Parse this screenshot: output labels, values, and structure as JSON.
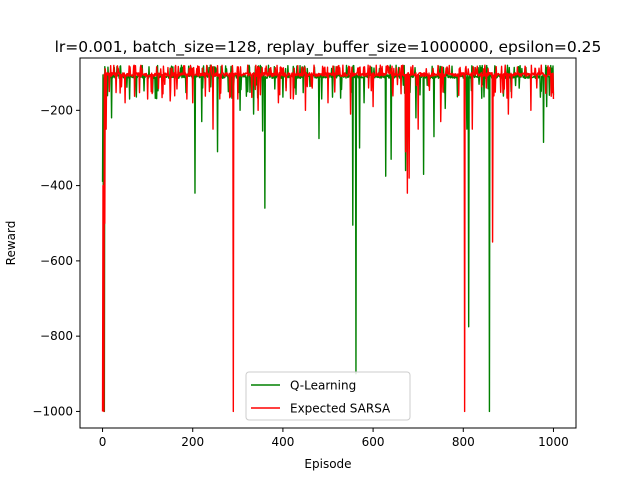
{
  "chart_data": {
    "type": "line",
    "title": "lr=0.001, batch_size=128, replay_buffer_size=1000000, epsilon=0.25",
    "xlabel": "Episode",
    "ylabel": "Reward",
    "xlim": [
      -50,
      1050
    ],
    "ylim": [
      -1044,
      -61
    ],
    "xticks": [
      0,
      200,
      400,
      600,
      800,
      1000
    ],
    "yticks": [
      -200,
      -400,
      -600,
      -800,
      -1000
    ],
    "xtick_labels": [
      "0",
      "200",
      "400",
      "600",
      "800",
      "1000"
    ],
    "ytick_labels": [
      "−200",
      "−400",
      "−600",
      "−800",
      "−1000"
    ],
    "grid": false,
    "legend": "lower center",
    "series": [
      {
        "name": "Q-Learning",
        "color": "#008000",
        "baseline": [
          -105,
          -115
        ],
        "spikes": [
          [
            0,
            -390
          ],
          [
            2,
            -620
          ],
          [
            4,
            -1000
          ],
          [
            10,
            -150
          ],
          [
            20,
            -220
          ],
          [
            60,
            -170
          ],
          [
            205,
            -420
          ],
          [
            220,
            -230
          ],
          [
            255,
            -310
          ],
          [
            305,
            -200
          ],
          [
            335,
            -210
          ],
          [
            355,
            -255
          ],
          [
            360,
            -460
          ],
          [
            400,
            -165
          ],
          [
            480,
            -275
          ],
          [
            510,
            -165
          ],
          [
            555,
            -505
          ],
          [
            562,
            -900
          ],
          [
            570,
            -300
          ],
          [
            580,
            -180
          ],
          [
            628,
            -375
          ],
          [
            640,
            -330
          ],
          [
            672,
            -360
          ],
          [
            695,
            -220
          ],
          [
            712,
            -370
          ],
          [
            735,
            -270
          ],
          [
            760,
            -195
          ],
          [
            808,
            -250
          ],
          [
            812,
            -775
          ],
          [
            858,
            -1000
          ],
          [
            900,
            -170
          ],
          [
            978,
            -285
          ],
          [
            985,
            -190
          ],
          [
            1000,
            -160
          ]
        ]
      },
      {
        "name": "Expected SARSA",
        "color": "#ff0000",
        "baseline": [
          -100,
          -110
        ],
        "spikes": [
          [
            0,
            -1000
          ],
          [
            1,
            -400
          ],
          [
            2,
            -700
          ],
          [
            3,
            -1000
          ],
          [
            5,
            -500
          ],
          [
            8,
            -250
          ],
          [
            15,
            -150
          ],
          [
            50,
            -180
          ],
          [
            100,
            -170
          ],
          [
            150,
            -175
          ],
          [
            200,
            -180
          ],
          [
            245,
            -250
          ],
          [
            290,
            -1000
          ],
          [
            300,
            -170
          ],
          [
            345,
            -200
          ],
          [
            390,
            -180
          ],
          [
            450,
            -200
          ],
          [
            500,
            -180
          ],
          [
            550,
            -210
          ],
          [
            600,
            -190
          ],
          [
            672,
            -310
          ],
          [
            676,
            -420
          ],
          [
            680,
            -380
          ],
          [
            700,
            -250
          ],
          [
            750,
            -230
          ],
          [
            803,
            -1000
          ],
          [
            820,
            -250
          ],
          [
            865,
            -550
          ],
          [
            900,
            -210
          ],
          [
            950,
            -200
          ],
          [
            1000,
            -170
          ]
        ]
      }
    ]
  }
}
